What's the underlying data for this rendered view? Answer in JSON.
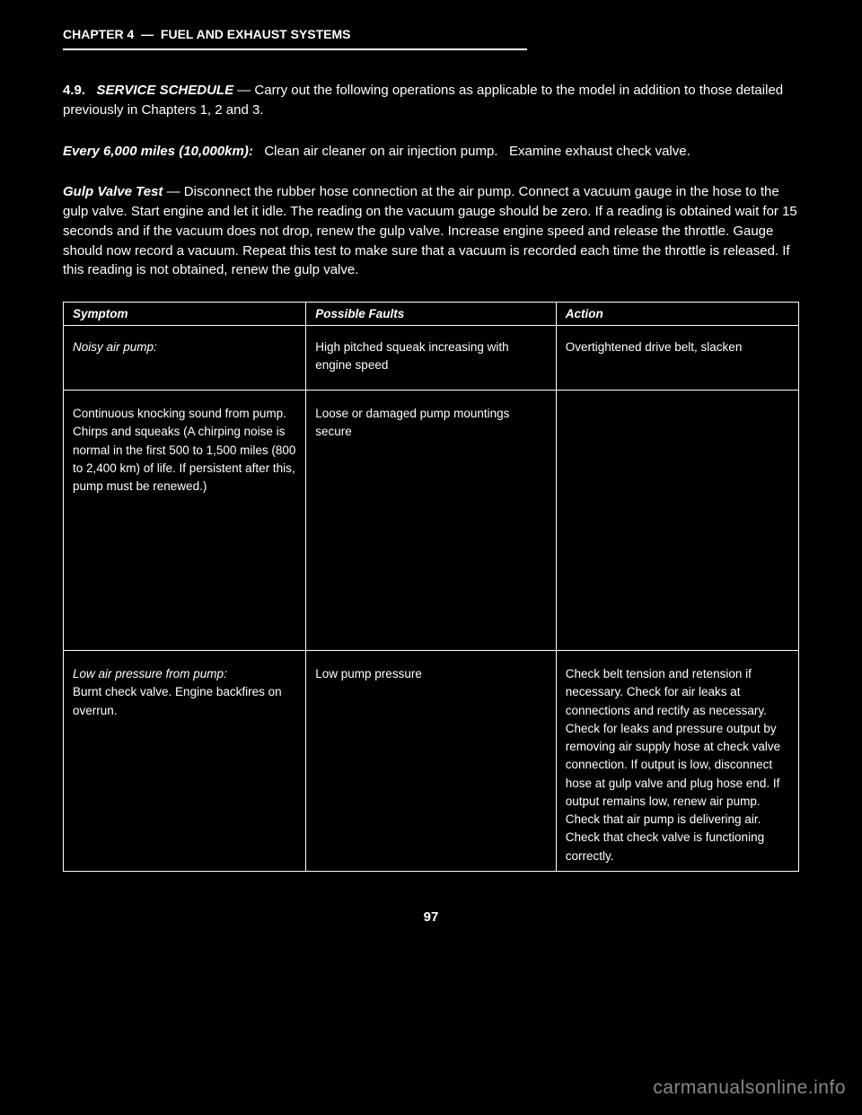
{
  "chapter": {
    "label": "CHAPTER 4",
    "title": "FUEL AND EXHAUST SYSTEMS"
  },
  "intro_section": {
    "number": "4.9.",
    "heading": "SERVICE SCHEDULE",
    "body_prefix": " — Carry out the following operations as applicable to the model in addition to those detailed previously in Chapters 1, 2 and 3."
  },
  "every_section": {
    "lead": "Every 6,000 miles (10,000km):",
    "items": [
      "Clean air cleaner on air injection pump.",
      "Examine exhaust check valve."
    ]
  },
  "gulp_section": {
    "heading": "Gulp Valve Test",
    "paragraphs": [
      "Disconnect the rubber hose connection at the air pump.",
      "Connect a vacuum gauge in the hose to the gulp valve.",
      "Start engine and let it idle. The reading on the vacuum gauge should be zero. If a reading is obtained wait for 15 seconds and if the vacuum does not drop, renew the gulp valve.",
      "Increase engine speed and release the throttle. Gauge should now record a vacuum. Repeat this test to make sure that a vacuum is recorded each time the throttle is released.",
      "If this reading is not obtained, renew the gulp valve."
    ]
  },
  "table": {
    "columns": [
      "Symptom",
      "Possible Faults",
      "Action"
    ],
    "rows": [
      {
        "symptom_heading": "Noisy air pump:",
        "symptom_body": "",
        "fault": "High pitched squeak increasing with engine speed",
        "action": "Overtightened drive belt, slacken"
      },
      {
        "symptom_heading": "",
        "symptom_body": "Continuous knocking sound from pump. Chirps and squeaks (A chirping noise is normal in the first 500 to 1,500 miles (800 to 2,400 km) of life. If persistent after this, pump must be renewed.)",
        "fault": "Loose or damaged pump mountings secure",
        "action": ""
      },
      {
        "symptom_heading": "Low air pressure from pump:",
        "symptom_body": "Burnt check valve. Engine backfires on overrun.",
        "fault": "Low pump pressure",
        "action": "Check belt tension and retension if necessary. Check for air leaks at connections and rectify as necessary. Check for leaks and pressure output by removing air supply hose at check valve connection. If output is low, disconnect hose at gulp valve and plug hose end. If output remains low, renew air pump. Check that air pump is delivering air. Check that check valve is functioning correctly."
      }
    ]
  },
  "page_number": "97",
  "watermark": "carmanualsonline.info",
  "colors": {
    "background": "#000000",
    "text": "#ffffff",
    "border": "#ffffff",
    "watermark": "#888888"
  }
}
